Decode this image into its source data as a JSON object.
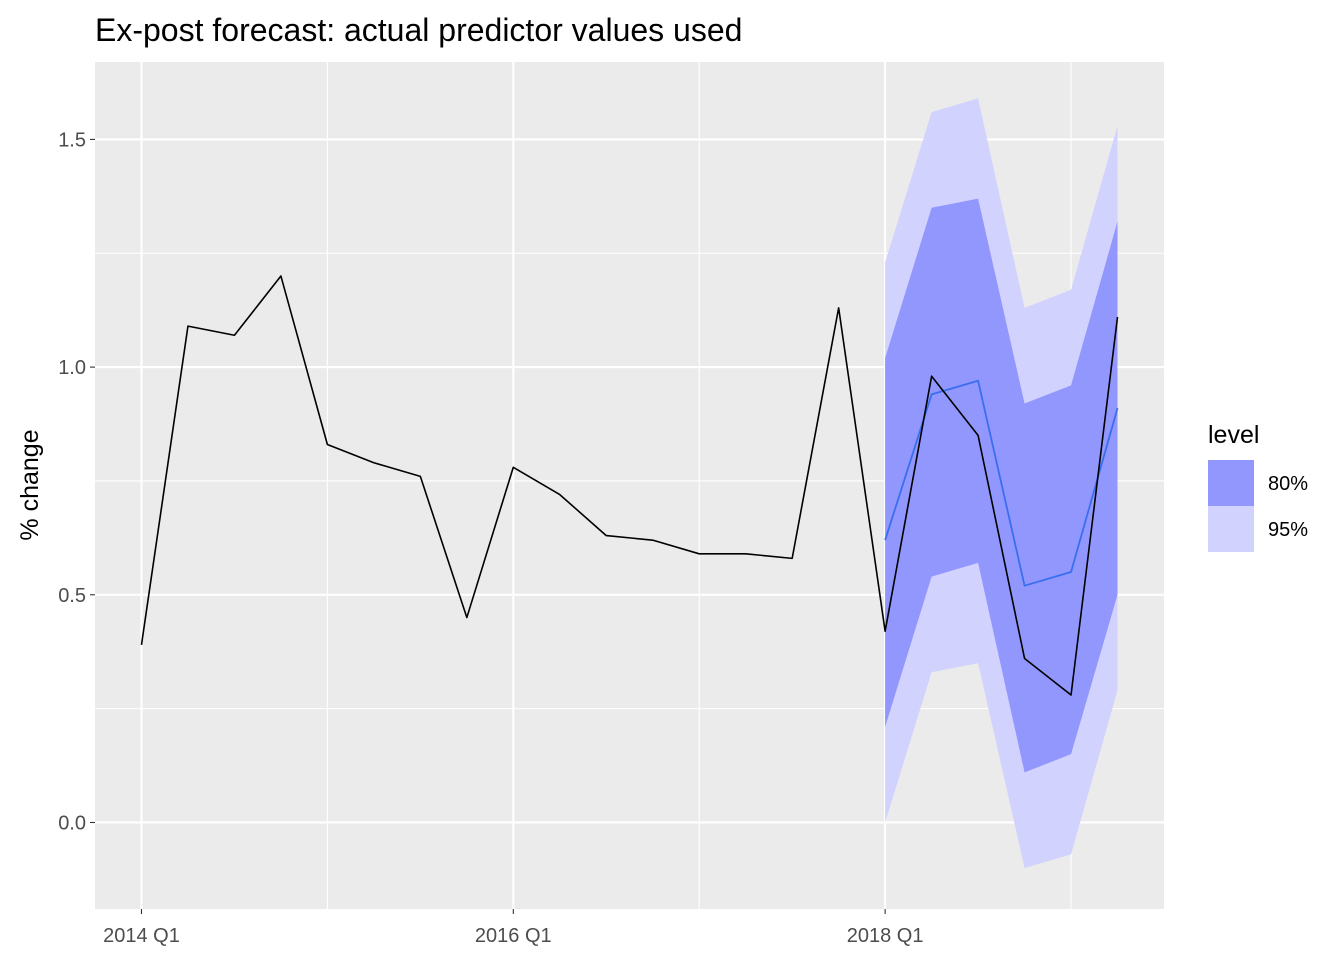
{
  "chart_data": {
    "type": "line",
    "title": "Ex-post forecast: actual predictor values used",
    "xlabel": "",
    "ylabel": "% change",
    "x": [
      "2014 Q1",
      "2014 Q2",
      "2014 Q3",
      "2014 Q4",
      "2015 Q1",
      "2015 Q2",
      "2015 Q3",
      "2015 Q4",
      "2016 Q1",
      "2016 Q2",
      "2016 Q3",
      "2016 Q4",
      "2017 Q1",
      "2017 Q2",
      "2017 Q3",
      "2017 Q4",
      "2018 Q1",
      "2018 Q2",
      "2018 Q3",
      "2018 Q4",
      "2019 Q1",
      "2019 Q2"
    ],
    "x_tick_labels": [
      "2014 Q1",
      "2016 Q1",
      "2018 Q1"
    ],
    "y_tick_labels": [
      "0.0",
      "0.5",
      "1.0",
      "1.5"
    ],
    "y_ticks": [
      0.0,
      0.5,
      1.0,
      1.5
    ],
    "ylim": [
      -0.19,
      1.67
    ],
    "xlim": [
      "2013 Q4",
      "2019 Q3"
    ],
    "grid": true,
    "legend_position": "right",
    "legend_title": "level",
    "series": [
      {
        "kind": "actual",
        "color": "#000000",
        "x": [
          "2014 Q1",
          "2014 Q2",
          "2014 Q3",
          "2014 Q4",
          "2015 Q1",
          "2015 Q2",
          "2015 Q3",
          "2015 Q4",
          "2016 Q1",
          "2016 Q2",
          "2016 Q3",
          "2016 Q4",
          "2017 Q1",
          "2017 Q2",
          "2017 Q3",
          "2017 Q4",
          "2018 Q1",
          "2018 Q2",
          "2018 Q3",
          "2018 Q4",
          "2019 Q1",
          "2019 Q2"
        ],
        "values": [
          0.39,
          1.09,
          1.07,
          1.2,
          0.83,
          0.79,
          0.76,
          0.45,
          0.78,
          0.72,
          0.63,
          0.62,
          0.59,
          0.59,
          0.58,
          1.13,
          0.42,
          0.98,
          0.85,
          0.36,
          0.28,
          1.11
        ]
      },
      {
        "kind": "forecast",
        "color": "#3a6ef0",
        "x": [
          "2018 Q1",
          "2018 Q2",
          "2018 Q3",
          "2018 Q4",
          "2019 Q1",
          "2019 Q2"
        ],
        "values": [
          0.62,
          0.94,
          0.97,
          0.52,
          0.55,
          0.91
        ]
      }
    ],
    "intervals": [
      {
        "name": "95%",
        "color": "#d2d2fe",
        "x": [
          "2018 Q1",
          "2018 Q2",
          "2018 Q3",
          "2018 Q4",
          "2019 Q1",
          "2019 Q2"
        ],
        "lower": [
          0.0,
          0.33,
          0.35,
          -0.1,
          -0.07,
          0.29
        ],
        "upper": [
          1.23,
          1.56,
          1.59,
          1.13,
          1.17,
          1.53
        ]
      },
      {
        "name": "80%",
        "color": "#9297fd",
        "x": [
          "2018 Q1",
          "2018 Q2",
          "2018 Q3",
          "2018 Q4",
          "2019 Q1",
          "2019 Q2"
        ],
        "lower": [
          0.21,
          0.54,
          0.57,
          0.11,
          0.15,
          0.5
        ],
        "upper": [
          1.02,
          1.35,
          1.37,
          0.92,
          0.96,
          1.32
        ]
      }
    ],
    "legend": [
      {
        "label": "80%",
        "color": "#9297fd"
      },
      {
        "label": "95%",
        "color": "#d2d2fe"
      }
    ],
    "panel_background": "#ebebeb",
    "grid_color": "#ffffff"
  }
}
